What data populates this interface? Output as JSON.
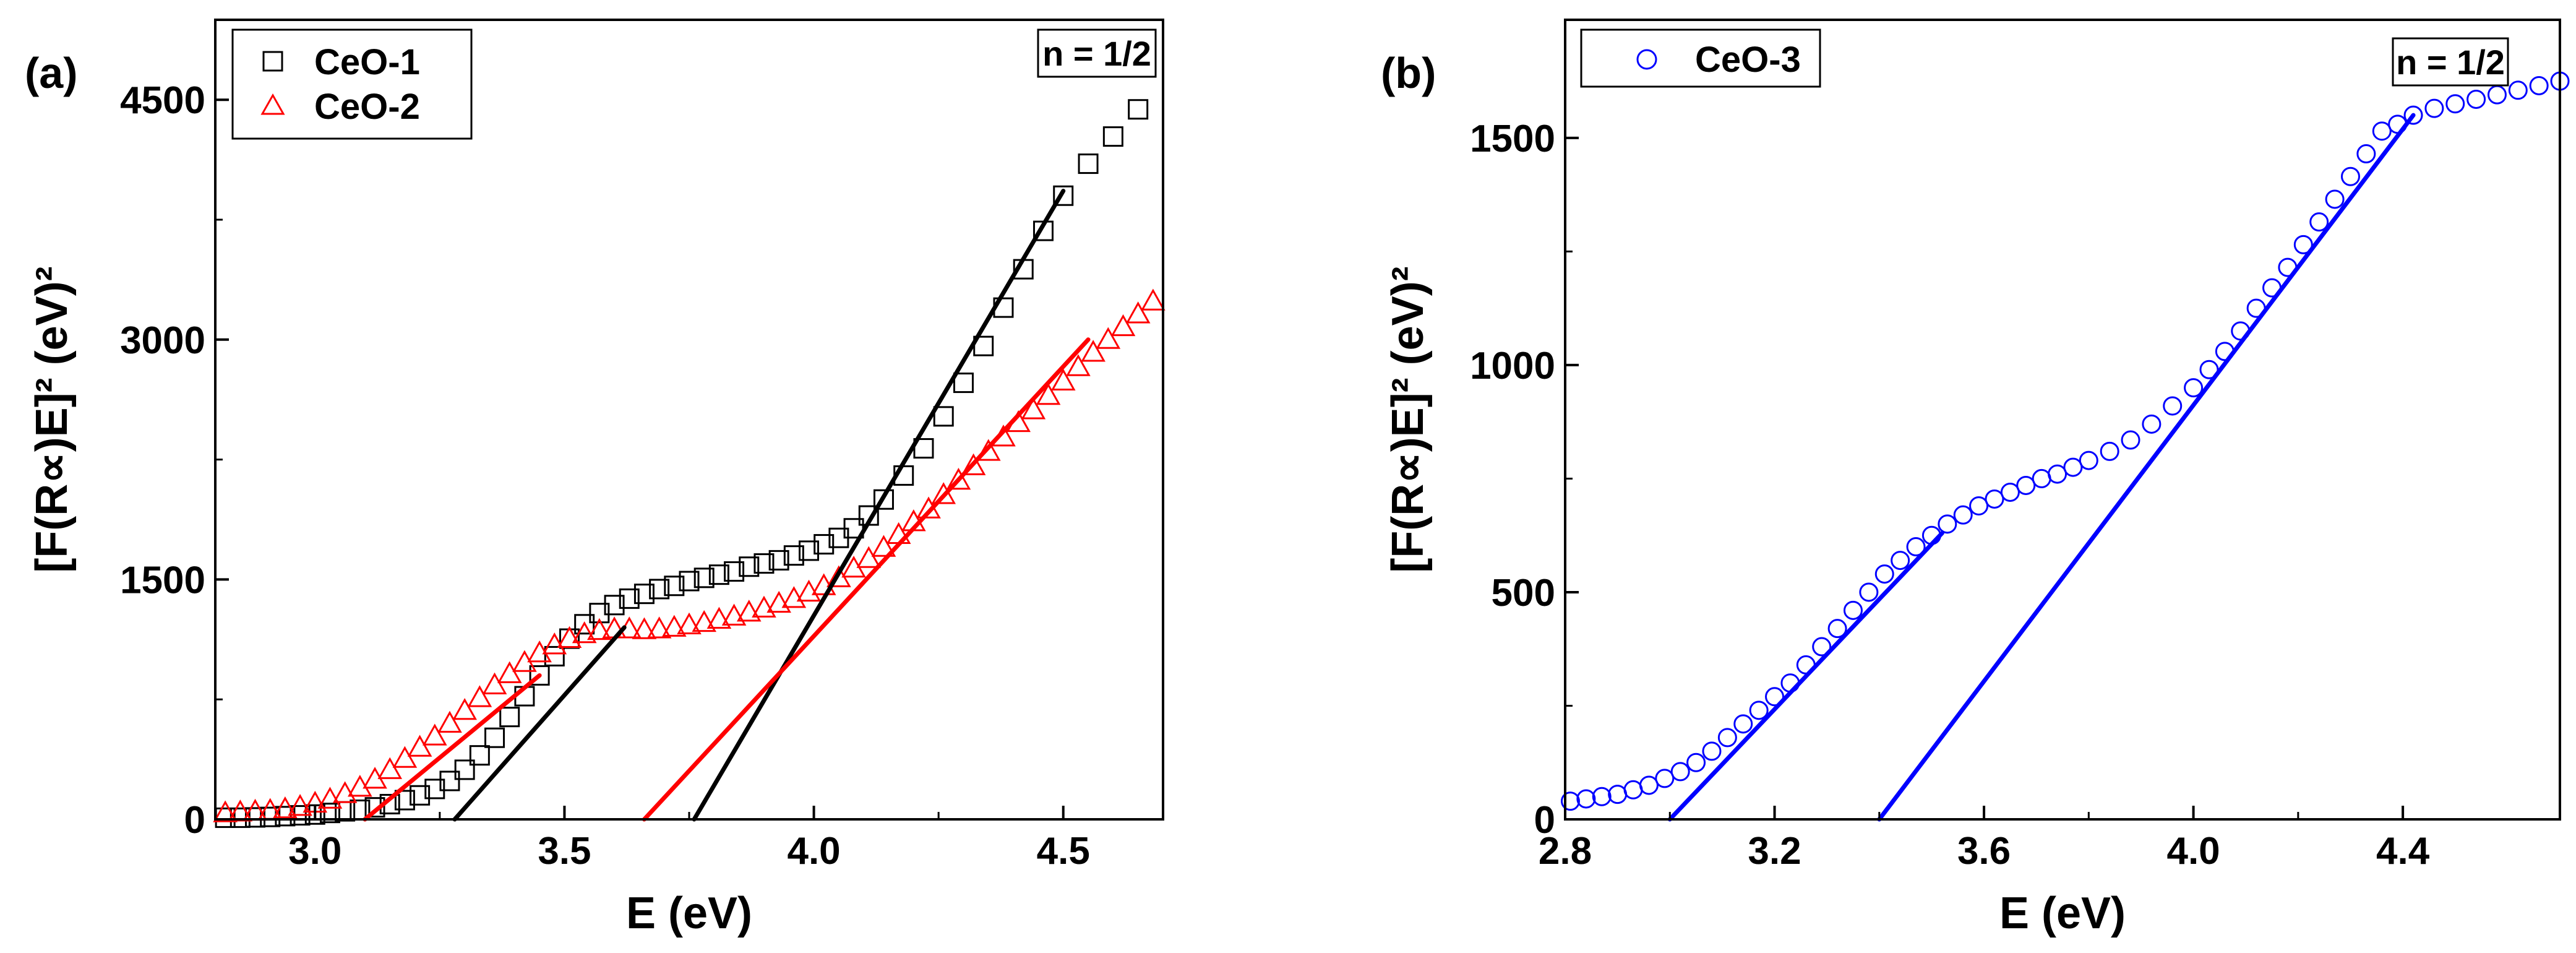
{
  "chart_data": [
    {
      "panel": "(a)",
      "type": "scatter",
      "xlabel": "E (eV)",
      "ylabel": "[F(R∝)E]² (eV)²",
      "xlim": [
        2.8,
        4.7
      ],
      "ylim": [
        0,
        5000
      ],
      "xticks": [
        3.0,
        3.5,
        4.0,
        4.5
      ],
      "xtick_labels": [
        "3.0",
        "3.5",
        "4.0",
        "4.5"
      ],
      "yticks": [
        0,
        1500,
        3000,
        4500
      ],
      "ytick_labels": [
        "0",
        "1500",
        "3000",
        "4500"
      ],
      "annotation": "n = 1/2",
      "series": [
        {
          "name": "CeO-1",
          "marker": "square",
          "color": "#000000",
          "x": [
            2.82,
            2.85,
            2.88,
            2.91,
            2.94,
            2.97,
            3.0,
            3.03,
            3.06,
            3.09,
            3.12,
            3.15,
            3.18,
            3.21,
            3.24,
            3.27,
            3.3,
            3.33,
            3.36,
            3.39,
            3.42,
            3.45,
            3.48,
            3.51,
            3.54,
            3.57,
            3.6,
            3.63,
            3.66,
            3.69,
            3.72,
            3.75,
            3.78,
            3.81,
            3.84,
            3.87,
            3.9,
            3.93,
            3.96,
            3.99,
            4.02,
            4.05,
            4.08,
            4.11,
            4.14,
            4.18,
            4.22,
            4.26,
            4.3,
            4.34,
            4.38,
            4.42,
            4.46,
            4.5,
            4.55,
            4.6,
            4.65
          ],
          "y": [
            10,
            10,
            12,
            15,
            20,
            25,
            30,
            40,
            50,
            60,
            75,
            95,
            120,
            150,
            190,
            240,
            310,
            400,
            510,
            640,
            770,
            900,
            1020,
            1130,
            1220,
            1290,
            1340,
            1380,
            1410,
            1440,
            1460,
            1490,
            1510,
            1530,
            1550,
            1580,
            1600,
            1620,
            1650,
            1680,
            1720,
            1760,
            1820,
            1900,
            2000,
            2150,
            2320,
            2520,
            2730,
            2960,
            3200,
            3440,
            3680,
            3900,
            4100,
            4270,
            4440
          ]
        },
        {
          "name": "CeO-2",
          "marker": "triangle",
          "color": "#ff0000",
          "x": [
            2.82,
            2.85,
            2.88,
            2.91,
            2.94,
            2.97,
            3.0,
            3.03,
            3.06,
            3.09,
            3.12,
            3.15,
            3.18,
            3.21,
            3.24,
            3.27,
            3.3,
            3.33,
            3.36,
            3.39,
            3.42,
            3.45,
            3.48,
            3.51,
            3.54,
            3.57,
            3.6,
            3.63,
            3.66,
            3.69,
            3.72,
            3.75,
            3.78,
            3.81,
            3.84,
            3.87,
            3.9,
            3.93,
            3.96,
            3.99,
            4.02,
            4.05,
            4.08,
            4.11,
            4.14,
            4.17,
            4.2,
            4.23,
            4.26,
            4.29,
            4.32,
            4.35,
            4.38,
            4.41,
            4.44,
            4.47,
            4.5,
            4.53,
            4.56,
            4.59,
            4.62,
            4.65,
            4.68
          ],
          "y": [
            40,
            45,
            50,
            55,
            65,
            80,
            100,
            125,
            160,
            200,
            250,
            310,
            380,
            450,
            520,
            600,
            680,
            760,
            840,
            910,
            980,
            1040,
            1090,
            1130,
            1160,
            1180,
            1190,
            1190,
            1185,
            1190,
            1200,
            1215,
            1230,
            1250,
            1270,
            1295,
            1320,
            1350,
            1380,
            1420,
            1460,
            1510,
            1570,
            1630,
            1700,
            1780,
            1860,
            1940,
            2030,
            2120,
            2210,
            2300,
            2390,
            2480,
            2560,
            2650,
            2740,
            2830,
            2920,
            3000,
            3080,
            3160,
            3240
          ]
        }
      ],
      "fit_lines": [
        {
          "color": "#000000",
          "x": [
            3.28,
            3.62
          ],
          "y": [
            0,
            1200
          ]
        },
        {
          "color": "#000000",
          "x": [
            3.76,
            4.5
          ],
          "y": [
            0,
            3930
          ]
        },
        {
          "color": "#ff0000",
          "x": [
            3.1,
            3.45
          ],
          "y": [
            0,
            900
          ]
        },
        {
          "color": "#ff0000",
          "x": [
            3.66,
            4.55
          ],
          "y": [
            0,
            3000
          ]
        }
      ]
    },
    {
      "panel": "(b)",
      "type": "scatter",
      "xlabel": "E (eV)",
      "ylabel": "[F(R∝)E]² (eV)²",
      "xlim": [
        2.8,
        4.7
      ],
      "ylim": [
        0,
        1760
      ],
      "xticks": [
        2.8,
        3.2,
        3.6,
        4.0,
        4.4
      ],
      "xtick_labels": [
        "2.8",
        "3.2",
        "3.6",
        "4.0",
        "4.4"
      ],
      "yticks": [
        0,
        500,
        1000,
        1500
      ],
      "ytick_labels": [
        "0",
        "500",
        "1000",
        "1500"
      ],
      "annotation": "n = 1/2",
      "series": [
        {
          "name": "CeO-3",
          "marker": "circle",
          "color": "#0000ff",
          "x": [
            2.81,
            2.84,
            2.87,
            2.9,
            2.93,
            2.96,
            2.99,
            3.02,
            3.05,
            3.08,
            3.11,
            3.14,
            3.17,
            3.2,
            3.23,
            3.26,
            3.29,
            3.32,
            3.35,
            3.38,
            3.41,
            3.44,
            3.47,
            3.5,
            3.53,
            3.56,
            3.59,
            3.62,
            3.65,
            3.68,
            3.71,
            3.74,
            3.77,
            3.8,
            3.84,
            3.88,
            3.92,
            3.96,
            4.0,
            4.03,
            4.06,
            4.09,
            4.12,
            4.15,
            4.18,
            4.21,
            4.24,
            4.27,
            4.3,
            4.33,
            4.36,
            4.39,
            4.42,
            4.46,
            4.5,
            4.54,
            4.58,
            4.62,
            4.66,
            4.7
          ],
          "y": [
            40,
            45,
            50,
            55,
            65,
            75,
            90,
            105,
            125,
            150,
            180,
            210,
            240,
            270,
            300,
            340,
            380,
            420,
            460,
            500,
            540,
            570,
            600,
            625,
            650,
            670,
            690,
            705,
            720,
            735,
            750,
            760,
            775,
            790,
            810,
            835,
            870,
            910,
            950,
            990,
            1030,
            1075,
            1125,
            1170,
            1215,
            1265,
            1315,
            1365,
            1415,
            1465,
            1515,
            1530,
            1550,
            1565,
            1575,
            1585,
            1595,
            1605,
            1615,
            1625
          ]
        }
      ],
      "fit_lines": [
        {
          "color": "#0000ff",
          "x": [
            3.0,
            3.52
          ],
          "y": [
            0,
            630
          ]
        },
        {
          "color": "#0000ff",
          "x": [
            3.4,
            4.42
          ],
          "y": [
            0,
            1550
          ]
        }
      ]
    }
  ]
}
